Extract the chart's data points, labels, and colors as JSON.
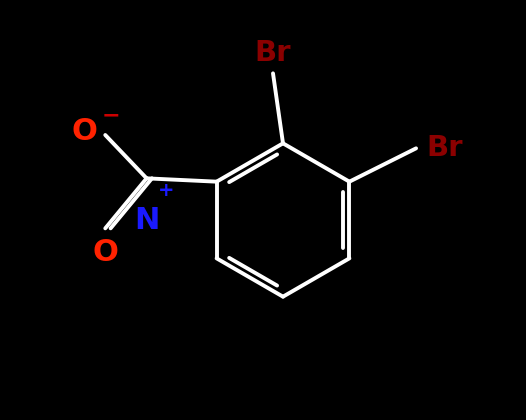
{
  "background_color": "#000000",
  "bond_color": "#ffffff",
  "bond_width": 2.8,
  "br_color": "#8b0000",
  "n_color": "#1a1aff",
  "o_color": "#ff2200",
  "minus_color": "#cc0000",
  "figsize": [
    5.26,
    4.2
  ],
  "dpi": 100,
  "font_size_atom": 20,
  "font_size_charge": 13,
  "xlim": [
    -3.2,
    3.8
  ],
  "ylim": [
    -3.5,
    2.8
  ]
}
